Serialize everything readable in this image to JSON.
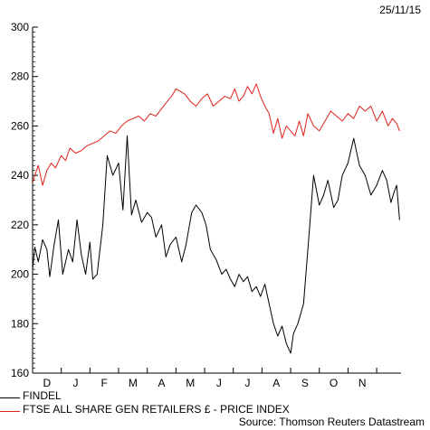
{
  "header": {
    "date": "25/11/15"
  },
  "legend": {
    "items": [
      {
        "label": "FINDEL",
        "color": "#000000"
      },
      {
        "label": "FTSE ALL SHARE GEN RETAILERS £ - PRICE INDEX",
        "color": "#e0201b"
      }
    ]
  },
  "footer": {
    "source": "Source: Thomson Reuters Datastream"
  },
  "chart_data": {
    "type": "line",
    "y_ticks": [
      "160",
      "180",
      "200",
      "220",
      "240",
      "260",
      "280",
      "300"
    ],
    "ylim": [
      160,
      300
    ],
    "month_labels": [
      "D",
      "J",
      "F",
      "M",
      "A",
      "M",
      "J",
      "J",
      "A",
      "S",
      "O",
      "N"
    ],
    "x_range_months": [
      0,
      12.85
    ],
    "grid": false,
    "legend_position": "bottom-left",
    "series": [
      {
        "name": "FINDEL",
        "color": "#000000",
        "x": [
          0,
          0.08,
          0.2,
          0.35,
          0.5,
          0.6,
          0.75,
          0.9,
          1.05,
          1.25,
          1.4,
          1.55,
          1.7,
          1.85,
          2.0,
          2.1,
          2.25,
          2.45,
          2.6,
          2.8,
          3.0,
          3.15,
          3.3,
          3.45,
          3.6,
          3.8,
          4.0,
          4.15,
          4.3,
          4.5,
          4.65,
          4.8,
          5.0,
          5.2,
          5.35,
          5.55,
          5.7,
          5.9,
          6.05,
          6.2,
          6.4,
          6.6,
          6.75,
          6.9,
          7.05,
          7.2,
          7.35,
          7.5,
          7.65,
          7.8,
          7.95,
          8.1,
          8.25,
          8.4,
          8.55,
          8.7,
          8.85,
          9.0,
          9.1,
          9.25,
          9.45,
          9.6,
          9.8,
          10.0,
          10.15,
          10.3,
          10.5,
          10.65,
          10.8,
          11.0,
          11.2,
          11.4,
          11.6,
          11.8,
          12.0,
          12.2,
          12.35,
          12.5,
          12.6,
          12.7,
          12.8
        ],
        "values": [
          202,
          211,
          205,
          214,
          210,
          199,
          212,
          222,
          200,
          210,
          205,
          222,
          208,
          200,
          213,
          198,
          200,
          220,
          248,
          240,
          245,
          226,
          256,
          224,
          230,
          221,
          225,
          223,
          215,
          220,
          207,
          212,
          215,
          205,
          212,
          225,
          228,
          225,
          220,
          210,
          206,
          200,
          202,
          198,
          195,
          200,
          197,
          199,
          193,
          195,
          191,
          196,
          188,
          180,
          175,
          179,
          172,
          168,
          176,
          180,
          188,
          210,
          240,
          228,
          232,
          238,
          227,
          230,
          240,
          245,
          255,
          244,
          240,
          232,
          236,
          242,
          238,
          229,
          233,
          236,
          222
        ]
      },
      {
        "name": "FTSE ALL SHARE GEN RETAILERS £ - PRICE INDEX",
        "color": "#e0201b",
        "x": [
          0,
          0.08,
          0.2,
          0.35,
          0.5,
          0.65,
          0.8,
          1.0,
          1.15,
          1.3,
          1.5,
          1.7,
          1.9,
          2.1,
          2.3,
          2.5,
          2.7,
          2.9,
          3.1,
          3.3,
          3.5,
          3.7,
          3.9,
          4.1,
          4.3,
          4.5,
          4.7,
          4.85,
          5.0,
          5.15,
          5.3,
          5.5,
          5.7,
          5.9,
          6.1,
          6.3,
          6.5,
          6.7,
          6.9,
          7.05,
          7.2,
          7.35,
          7.5,
          7.65,
          7.8,
          7.95,
          8.1,
          8.25,
          8.4,
          8.55,
          8.7,
          8.85,
          9.0,
          9.15,
          9.3,
          9.45,
          9.6,
          9.8,
          10.0,
          10.2,
          10.4,
          10.6,
          10.8,
          11.0,
          11.2,
          11.4,
          11.6,
          11.8,
          12.0,
          12.2,
          12.4,
          12.55,
          12.7,
          12.8
        ],
        "values": [
          237,
          240,
          244,
          236,
          242,
          245,
          243,
          248,
          246,
          251,
          249,
          250,
          252,
          253,
          254,
          256,
          258,
          257,
          260,
          262,
          263,
          264,
          262,
          265,
          264,
          267,
          270,
          272,
          275,
          274,
          273,
          270,
          268,
          271,
          273,
          268,
          270,
          272,
          271,
          275,
          270,
          272,
          276,
          273,
          277,
          272,
          268,
          265,
          257,
          263,
          255,
          260,
          258,
          256,
          262,
          256,
          265,
          260,
          258,
          262,
          266,
          264,
          262,
          265,
          263,
          268,
          266,
          268,
          262,
          266,
          260,
          263,
          261,
          258
        ]
      }
    ]
  }
}
